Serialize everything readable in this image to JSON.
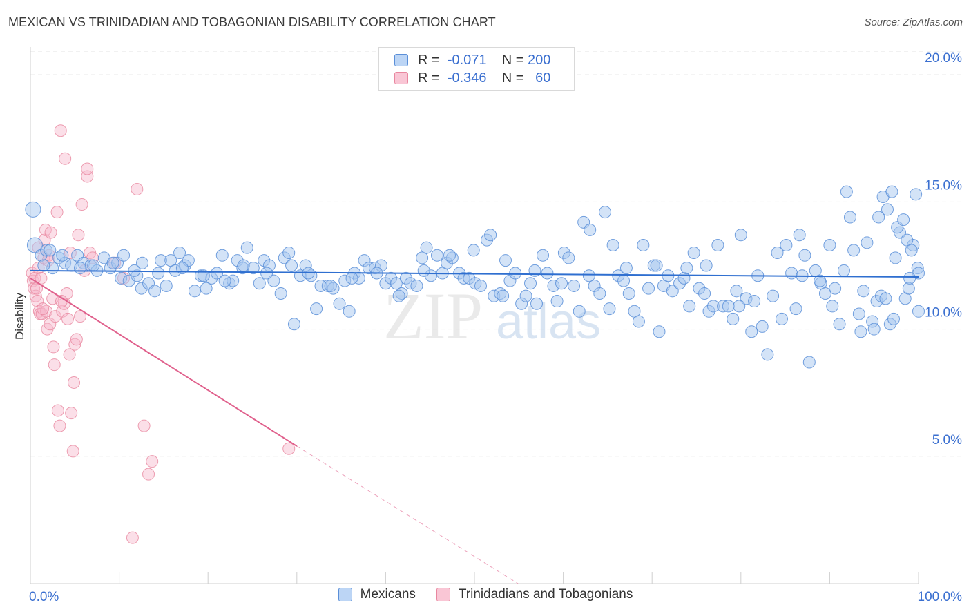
{
  "title": "MEXICAN VS TRINIDADIAN AND TOBAGONIAN DISABILITY CORRELATION CHART",
  "source": "Source: ZipAtlas.com",
  "watermark": {
    "zip": "ZIP",
    "atlas": "atlas"
  },
  "colors": {
    "blue_fill": "#a8c8f0",
    "blue_stroke": "#5b8fd8",
    "blue_line": "#2f6fd0",
    "pink_fill": "#f7b9cc",
    "pink_stroke": "#e8879f",
    "pink_line": "#e0608c",
    "axis_text_blue": "#3a6fd0",
    "grid": "#e3e3e3"
  },
  "legend": {
    "rows": [
      {
        "r_label": "R =",
        "r_value": "-0.071",
        "n_label": "N =",
        "n_value": "200"
      },
      {
        "r_label": "R =",
        "r_value": "-0.346",
        "n_label": "N =",
        "n_value": " 60"
      }
    ]
  },
  "bottom_legend": [
    "Mexicans",
    "Trinidadians and Tobagonians"
  ],
  "chart_data": {
    "type": "scatter",
    "title": "MEXICAN VS TRINIDADIAN AND TOBAGONIAN DISABILITY CORRELATION CHART",
    "xlabel": "",
    "ylabel": "Disability",
    "xlim": [
      0,
      100
    ],
    "ylim": [
      0,
      20.9
    ],
    "x_tick_labels": [
      "0.0%",
      "100.0%"
    ],
    "y_ticks": [
      5,
      10,
      15,
      20
    ],
    "y_tick_labels": [
      "5.0%",
      "10.0%",
      "15.0%",
      "20.0%"
    ],
    "grid": "horizontal dashed",
    "legend_position": "top-center",
    "series": [
      {
        "name": "Mexicans",
        "stats": {
          "R": -0.071,
          "N": 200
        },
        "trend": {
          "x": [
            0,
            100
          ],
          "y": [
            12.3,
            12.05
          ]
        },
        "points": [
          [
            0.3,
            14.7
          ],
          [
            0.5,
            13.3
          ],
          [
            1.2,
            12.9
          ],
          [
            1.8,
            13.1
          ],
          [
            2.5,
            12.4
          ],
          [
            3.2,
            12.8
          ],
          [
            3.9,
            12.6
          ],
          [
            4.6,
            12.5
          ],
          [
            5.3,
            12.9
          ],
          [
            6.0,
            12.6
          ],
          [
            6.8,
            12.5
          ],
          [
            7.5,
            12.3
          ],
          [
            8.3,
            12.8
          ],
          [
            9.0,
            12.4
          ],
          [
            9.8,
            12.6
          ],
          [
            10.5,
            12.9
          ],
          [
            10.2,
            12.0
          ],
          [
            11.1,
            11.9
          ],
          [
            12.0,
            12.1
          ],
          [
            12.6,
            12.6
          ],
          [
            12.5,
            11.6
          ],
          [
            13.3,
            11.8
          ],
          [
            14.0,
            11.5
          ],
          [
            14.7,
            12.7
          ],
          [
            15.3,
            11.7
          ],
          [
            15.8,
            12.7
          ],
          [
            16.3,
            12.3
          ],
          [
            16.8,
            13.0
          ],
          [
            17.4,
            12.5
          ],
          [
            17.8,
            12.7
          ],
          [
            18.5,
            11.5
          ],
          [
            19.2,
            12.1
          ],
          [
            19.8,
            11.6
          ],
          [
            20.4,
            12.0
          ],
          [
            21.0,
            12.2
          ],
          [
            21.6,
            12.9
          ],
          [
            22.4,
            11.8
          ],
          [
            22.8,
            11.9
          ],
          [
            23.3,
            12.7
          ],
          [
            23.9,
            12.4
          ],
          [
            24.4,
            13.2
          ],
          [
            25.1,
            12.4
          ],
          [
            25.8,
            11.8
          ],
          [
            26.3,
            12.7
          ],
          [
            26.9,
            12.5
          ],
          [
            27.4,
            11.9
          ],
          [
            28.2,
            11.4
          ],
          [
            28.6,
            12.8
          ],
          [
            29.1,
            13.0
          ],
          [
            29.7,
            10.2
          ],
          [
            30.4,
            12.1
          ],
          [
            31.0,
            12.5
          ],
          [
            31.6,
            12.1
          ],
          [
            32.2,
            10.8
          ],
          [
            32.7,
            11.7
          ],
          [
            33.5,
            11.7
          ],
          [
            34.1,
            11.6
          ],
          [
            34.8,
            11.0
          ],
          [
            35.4,
            11.9
          ],
          [
            35.9,
            10.7
          ],
          [
            36.5,
            12.2
          ],
          [
            37.0,
            12.0
          ],
          [
            37.6,
            12.7
          ],
          [
            38.1,
            12.4
          ],
          [
            38.8,
            12.4
          ],
          [
            39.5,
            12.5
          ],
          [
            40.0,
            11.8
          ],
          [
            40.6,
            12.0
          ],
          [
            41.2,
            11.8
          ],
          [
            41.8,
            11.4
          ],
          [
            42.3,
            12.0
          ],
          [
            42.8,
            11.8
          ],
          [
            43.5,
            11.7
          ],
          [
            44.1,
            12.8
          ],
          [
            44.6,
            13.2
          ],
          [
            45.1,
            12.1
          ],
          [
            45.8,
            12.9
          ],
          [
            46.4,
            12.2
          ],
          [
            46.9,
            12.6
          ],
          [
            47.5,
            12.8
          ],
          [
            48.3,
            12.2
          ],
          [
            48.8,
            12.0
          ],
          [
            49.4,
            12.0
          ],
          [
            50.1,
            11.8
          ],
          [
            50.7,
            11.7
          ],
          [
            51.4,
            13.5
          ],
          [
            51.8,
            13.7
          ],
          [
            52.2,
            11.3
          ],
          [
            52.9,
            11.4
          ],
          [
            53.5,
            12.7
          ],
          [
            54.0,
            11.9
          ],
          [
            54.6,
            12.2
          ],
          [
            55.3,
            11.0
          ],
          [
            55.8,
            11.3
          ],
          [
            56.3,
            11.8
          ],
          [
            57.0,
            11.0
          ],
          [
            57.7,
            12.9
          ],
          [
            58.2,
            12.2
          ],
          [
            58.9,
            11.7
          ],
          [
            59.3,
            11.1
          ],
          [
            60.1,
            13.0
          ],
          [
            60.6,
            12.8
          ],
          [
            61.2,
            11.7
          ],
          [
            61.8,
            10.7
          ],
          [
            62.3,
            14.2
          ],
          [
            63.0,
            13.9
          ],
          [
            63.5,
            11.7
          ],
          [
            64.1,
            11.4
          ],
          [
            64.7,
            14.6
          ],
          [
            65.2,
            10.8
          ],
          [
            65.6,
            13.3
          ],
          [
            66.2,
            12.1
          ],
          [
            66.8,
            11.9
          ],
          [
            67.4,
            11.4
          ],
          [
            68.0,
            10.7
          ],
          [
            68.5,
            10.3
          ],
          [
            69.0,
            13.3
          ],
          [
            69.6,
            11.6
          ],
          [
            70.2,
            12.5
          ],
          [
            70.8,
            9.9
          ],
          [
            71.3,
            11.7
          ],
          [
            71.8,
            12.1
          ],
          [
            72.3,
            11.5
          ],
          [
            73.1,
            11.8
          ],
          [
            73.6,
            12.0
          ],
          [
            74.2,
            10.9
          ],
          [
            74.7,
            13.0
          ],
          [
            75.3,
            11.6
          ],
          [
            75.9,
            11.4
          ],
          [
            76.4,
            10.7
          ],
          [
            76.9,
            10.9
          ],
          [
            77.4,
            13.3
          ],
          [
            78.0,
            10.9
          ],
          [
            78.6,
            10.9
          ],
          [
            79.1,
            10.4
          ],
          [
            79.5,
            11.5
          ],
          [
            80.0,
            13.7
          ],
          [
            80.6,
            11.2
          ],
          [
            81.2,
            9.9
          ],
          [
            81.9,
            12.1
          ],
          [
            82.4,
            10.1
          ],
          [
            83.0,
            9.0
          ],
          [
            83.6,
            11.3
          ],
          [
            84.1,
            13.0
          ],
          [
            84.6,
            10.4
          ],
          [
            85.1,
            13.3
          ],
          [
            85.7,
            12.2
          ],
          [
            86.2,
            10.8
          ],
          [
            86.6,
            13.7
          ],
          [
            87.2,
            12.9
          ],
          [
            87.7,
            8.7
          ],
          [
            88.4,
            12.3
          ],
          [
            89.0,
            11.8
          ],
          [
            89.5,
            11.4
          ],
          [
            90.0,
            13.3
          ],
          [
            90.6,
            11.6
          ],
          [
            91.1,
            10.2
          ],
          [
            91.6,
            12.3
          ],
          [
            92.3,
            14.4
          ],
          [
            92.7,
            13.1
          ],
          [
            93.3,
            10.6
          ],
          [
            93.8,
            11.5
          ],
          [
            94.2,
            13.4
          ],
          [
            94.8,
            10.3
          ],
          [
            95.3,
            11.1
          ],
          [
            95.8,
            11.3
          ],
          [
            96.3,
            11.2
          ],
          [
            96.8,
            10.2
          ],
          [
            97.4,
            12.8
          ],
          [
            97.9,
            13.8
          ],
          [
            98.5,
            11.2
          ],
          [
            98.9,
            11.6
          ],
          [
            99.4,
            13.3
          ],
          [
            99.9,
            12.4
          ],
          [
            100.0,
            12.2
          ],
          [
            91.9,
            15.4
          ],
          [
            95.5,
            14.4
          ],
          [
            96.0,
            15.2
          ],
          [
            96.5,
            14.7
          ],
          [
            97.0,
            15.4
          ],
          [
            97.6,
            14.0
          ],
          [
            98.3,
            14.3
          ],
          [
            99.7,
            15.3
          ],
          [
            98.7,
            13.5
          ],
          [
            99.2,
            13.1
          ],
          [
            100.0,
            10.7
          ],
          [
            99.0,
            12.0
          ],
          [
            97.2,
            10.4
          ],
          [
            95.0,
            10.0
          ],
          [
            93.5,
            9.9
          ],
          [
            90.3,
            10.9
          ],
          [
            88.9,
            11.9
          ],
          [
            86.9,
            12.1
          ],
          [
            81.5,
            11.1
          ],
          [
            79.8,
            10.9
          ],
          [
            76.1,
            12.5
          ],
          [
            73.9,
            12.4
          ],
          [
            70.5,
            12.5
          ],
          [
            67.1,
            12.4
          ],
          [
            62.9,
            12.1
          ],
          [
            59.8,
            11.8
          ],
          [
            56.8,
            12.3
          ],
          [
            53.2,
            11.3
          ],
          [
            49.9,
            13.1
          ],
          [
            47.2,
            12.9
          ],
          [
            44.3,
            12.3
          ],
          [
            41.5,
            11.3
          ],
          [
            39.0,
            12.2
          ],
          [
            36.2,
            12.0
          ],
          [
            33.8,
            11.7
          ],
          [
            31.3,
            12.2
          ],
          [
            29.4,
            12.5
          ],
          [
            26.6,
            12.2
          ],
          [
            24.0,
            12.5
          ],
          [
            21.9,
            11.9
          ],
          [
            19.5,
            12.1
          ],
          [
            17.1,
            12.4
          ],
          [
            14.4,
            12.2
          ],
          [
            11.7,
            12.3
          ],
          [
            9.3,
            12.6
          ],
          [
            7.1,
            12.5
          ],
          [
            5.6,
            12.4
          ],
          [
            3.6,
            12.9
          ],
          [
            2.2,
            13.1
          ],
          [
            1.5,
            12.5
          ]
        ]
      },
      {
        "name": "Trinidadians and Tobagonians",
        "stats": {
          "R": -0.346,
          "N": 60
        },
        "trend": {
          "x": [
            0,
            30.0
          ],
          "y": [
            12.0,
            5.4
          ]
        },
        "trend_extrapolated": {
          "x": [
            30.0,
            58.6
          ],
          "y": [
            5.4,
            -0.8
          ]
        },
        "points": [
          [
            0.2,
            12.2
          ],
          [
            0.3,
            11.9
          ],
          [
            0.4,
            11.6
          ],
          [
            0.5,
            12.0
          ],
          [
            0.6,
            11.3
          ],
          [
            0.7,
            11.6
          ],
          [
            0.8,
            11.1
          ],
          [
            0.9,
            12.4
          ],
          [
            1.0,
            10.7
          ],
          [
            1.1,
            10.6
          ],
          [
            1.2,
            12.0
          ],
          [
            1.3,
            10.6
          ],
          [
            1.5,
            12.8
          ],
          [
            1.6,
            13.5
          ],
          [
            1.7,
            13.9
          ],
          [
            1.8,
            10.7
          ],
          [
            1.9,
            10.0
          ],
          [
            2.1,
            12.9
          ],
          [
            2.2,
            10.2
          ],
          [
            2.3,
            13.8
          ],
          [
            2.5,
            11.2
          ],
          [
            2.6,
            9.3
          ],
          [
            2.7,
            8.6
          ],
          [
            2.8,
            10.5
          ],
          [
            3.0,
            14.6
          ],
          [
            3.1,
            6.8
          ],
          [
            3.3,
            6.2
          ],
          [
            3.4,
            17.8
          ],
          [
            3.6,
            10.7
          ],
          [
            3.8,
            11.0
          ],
          [
            3.9,
            16.7
          ],
          [
            4.1,
            11.4
          ],
          [
            4.2,
            10.4
          ],
          [
            4.4,
            9.0
          ],
          [
            4.6,
            6.7
          ],
          [
            4.8,
            5.2
          ],
          [
            4.9,
            7.9
          ],
          [
            5.0,
            9.4
          ],
          [
            5.2,
            9.6
          ],
          [
            5.4,
            13.7
          ],
          [
            5.6,
            10.5
          ],
          [
            5.8,
            14.9
          ],
          [
            6.1,
            12.3
          ],
          [
            6.4,
            16.0
          ],
          [
            6.4,
            16.3
          ],
          [
            6.7,
            13.0
          ],
          [
            7.0,
            12.8
          ],
          [
            9.5,
            12.6
          ],
          [
            10.5,
            12.0
          ],
          [
            12.0,
            15.5
          ],
          [
            12.8,
            6.2
          ],
          [
            13.3,
            4.3
          ],
          [
            13.7,
            4.8
          ],
          [
            11.5,
            1.8
          ],
          [
            29.1,
            5.3
          ],
          [
            2.0,
            12.7
          ],
          [
            0.9,
            13.2
          ],
          [
            1.4,
            10.8
          ],
          [
            3.5,
            11.1
          ],
          [
            4.5,
            13.0
          ]
        ]
      }
    ]
  }
}
